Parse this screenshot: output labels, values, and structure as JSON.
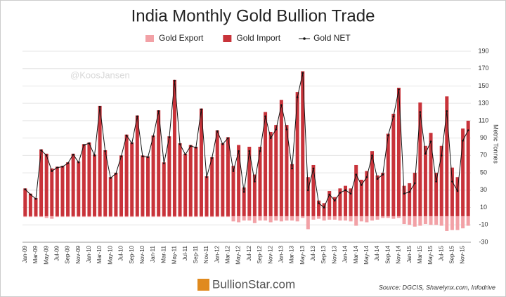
{
  "chart_data": {
    "type": "bar",
    "title": "India Monthly Gold Bullion Trade",
    "y_label": "Metric Tonnes",
    "watermark": "@KoosJansen",
    "brand": "BullionStar.com",
    "source": "Source: DGCIS, Sharelynx.com, Infodrive",
    "categories": [
      "Jan-09",
      null,
      "Mar-09",
      null,
      "May-09",
      null,
      "Jul-09",
      null,
      "Sep-09",
      null,
      "Nov-09",
      null,
      "Jan-10",
      null,
      "Mar-10",
      null,
      "May-10",
      null,
      "Jul-10",
      null,
      "Sep-10",
      null,
      "Nov-10",
      null,
      "Jan-11",
      null,
      "Mar-11",
      null,
      "May-11",
      null,
      "Jul-11",
      null,
      "Sep-11",
      null,
      "Nov-11",
      null,
      "Jan-12",
      null,
      "Mar-12",
      null,
      "May-12",
      null,
      "Jul-12",
      null,
      "Sep-12",
      null,
      "Nov-12",
      null,
      "Jan-13",
      null,
      "Mar-13",
      null,
      "May-13",
      null,
      "Jul-13",
      null,
      "Sep-13",
      null,
      "Nov-13",
      null,
      "Jan-14",
      null,
      "Mar-14",
      null,
      "May-14",
      null,
      "Jul-14",
      null,
      "Sep-14",
      null,
      "Nov-14",
      null,
      "Jan-15",
      null,
      "Mar-15",
      null,
      "May-15",
      null,
      "Jul-15",
      null,
      "Sep-15",
      null,
      "Nov-15",
      null
    ],
    "series": [
      {
        "name": "Gold Export",
        "type": "bar",
        "color": "#f2a1a6",
        "values": [
          -1,
          -1,
          -1,
          -1,
          -2,
          -3,
          -1,
          -1,
          -1,
          -1,
          -1,
          -1,
          -1,
          -1,
          -1,
          -1,
          -1,
          -1,
          -1,
          -1,
          -1,
          -1,
          -1,
          -1,
          -1,
          -1,
          -1,
          -1,
          -1,
          -1,
          -1,
          -1,
          -1,
          -1,
          -1,
          -1,
          -1,
          -1,
          -1,
          -6,
          -7,
          -5,
          -5,
          -8,
          -5,
          -5,
          -7,
          -5,
          -6,
          -5,
          -5,
          -6,
          -2,
          -15,
          -4,
          -3,
          -5,
          -4,
          -4,
          -5,
          -5,
          -6,
          -11,
          -6,
          -7,
          -5,
          -4,
          -2,
          -2,
          -3,
          -2,
          -9,
          -10,
          -12,
          -11,
          -9,
          -10,
          -10,
          -11,
          -17,
          -16,
          -16,
          -14,
          -11
        ]
      },
      {
        "name": "Gold Import",
        "type": "bar",
        "color": "#c8333a",
        "values": [
          32,
          26,
          21,
          77,
          72,
          55,
          57,
          58,
          62,
          72,
          63,
          83,
          85,
          71,
          127,
          76,
          45,
          50,
          70,
          94,
          85,
          116,
          70,
          69,
          93,
          122,
          62,
          92,
          157,
          84,
          72,
          82,
          80,
          124,
          46,
          68,
          99,
          84,
          91,
          58,
          82,
          33,
          80,
          48,
          80,
          120,
          97,
          105,
          134,
          105,
          60,
          143,
          167,
          45,
          59,
          18,
          15,
          29,
          22,
          32,
          35,
          32,
          59,
          42,
          52,
          75,
          47,
          50,
          95,
          118,
          148,
          35,
          38,
          50,
          131,
          81,
          96,
          50,
          81,
          138,
          56,
          45,
          101,
          110
        ]
      },
      {
        "name": "Gold NET",
        "type": "line",
        "color": "#111111",
        "values": [
          31,
          25,
          20,
          76,
          70,
          52,
          56,
          57,
          61,
          71,
          62,
          82,
          84,
          70,
          126,
          75,
          44,
          49,
          69,
          93,
          84,
          115,
          69,
          68,
          92,
          121,
          61,
          91,
          156,
          83,
          71,
          81,
          79,
          123,
          45,
          67,
          98,
          83,
          90,
          52,
          75,
          28,
          75,
          40,
          75,
          115,
          90,
          100,
          128,
          100,
          55,
          137,
          165,
          30,
          55,
          15,
          10,
          25,
          18,
          27,
          30,
          26,
          48,
          36,
          45,
          70,
          43,
          48,
          93,
          115,
          146,
          26,
          28,
          38,
          120,
          72,
          86,
          40,
          70,
          121,
          40,
          29,
          87,
          99
        ]
      }
    ],
    "ylim": [
      -30,
      190
    ],
    "yticks": [
      -30,
      -10,
      10,
      30,
      50,
      70,
      90,
      110,
      130,
      150,
      170,
      190
    ],
    "grid": true,
    "legend": "top"
  }
}
